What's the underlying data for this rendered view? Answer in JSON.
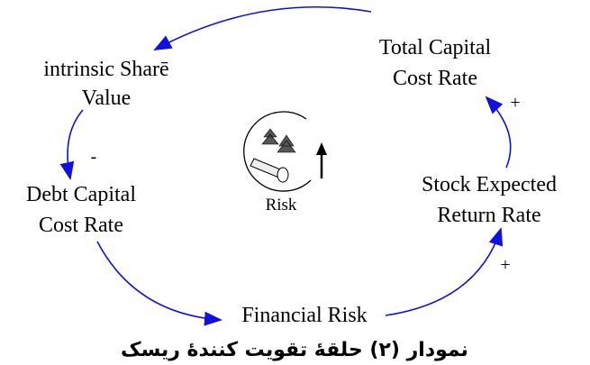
{
  "nodes": [
    {
      "lines": [
        "Total Capital",
        "Cost Rate"
      ]
    },
    {
      "lines": [
        "intrinsic Sharē",
        "Value"
      ]
    },
    {
      "lines": [
        "Debt Capital",
        "Cost Rate"
      ]
    },
    {
      "lines": [
        "Financial Risk"
      ]
    },
    {
      "lines": [
        "Stock Expected",
        "Return Rate"
      ]
    }
  ],
  "links": [
    {
      "from": 0,
      "to": 1
    },
    {
      "from": 1,
      "to": 2,
      "polarity": "-"
    },
    {
      "from": 2,
      "to": 3
    },
    {
      "from": 3,
      "to": 4,
      "polarity": "+"
    },
    {
      "from": 4,
      "to": 0,
      "polarity": "+"
    }
  ],
  "loop": {
    "label": "Risk"
  },
  "caption": "نمودار (۲) حلقهٔ تقویت کنندهٔ ریسک"
}
